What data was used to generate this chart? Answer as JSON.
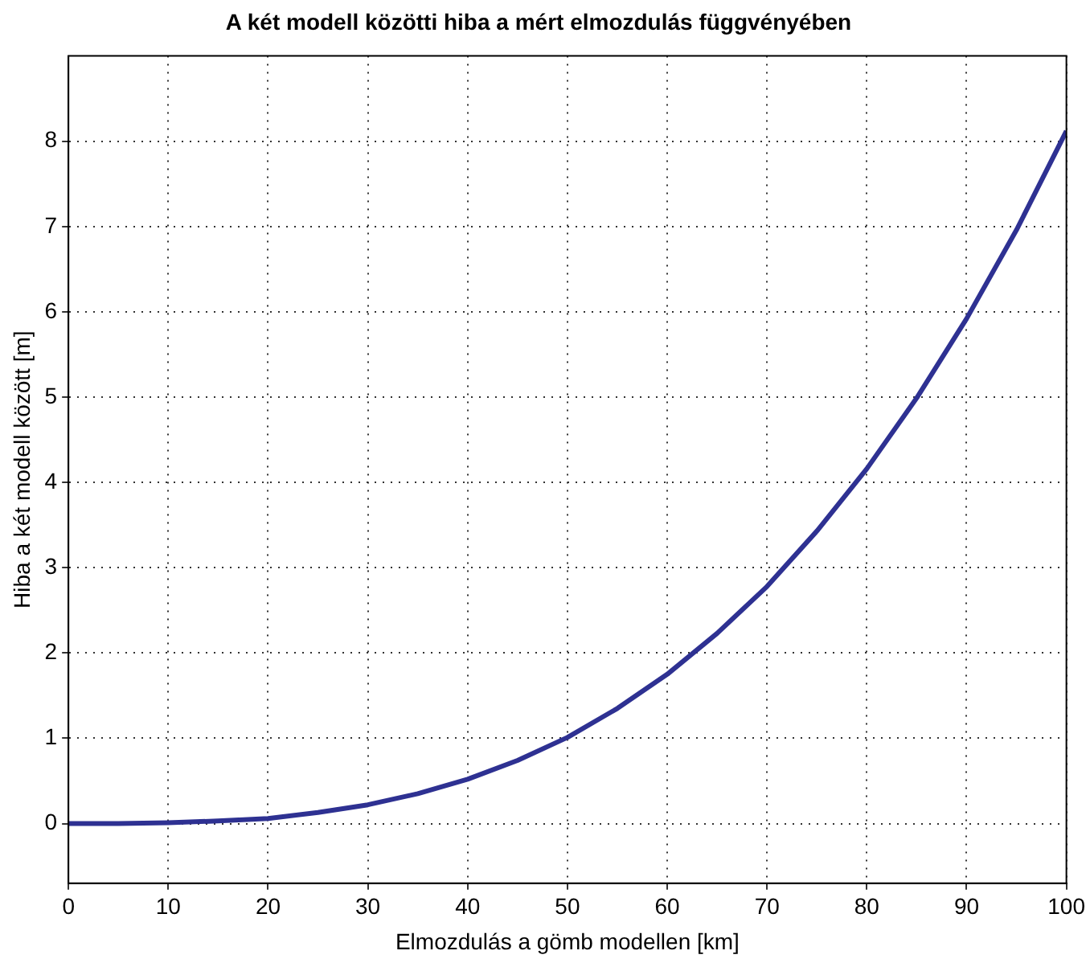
{
  "chart_data": {
    "type": "line",
    "title": "A két modell közötti hiba a mért elmozdulás függvényében",
    "xlabel": "Elmozdulás a gömb modellen [km]",
    "ylabel": "Hiba a két modell között [m]",
    "x": [
      0,
      5,
      10,
      15,
      20,
      25,
      30,
      35,
      40,
      45,
      50,
      55,
      60,
      65,
      70,
      75,
      80,
      85,
      90,
      95,
      100
    ],
    "series": [
      {
        "color": "#2e3192",
        "values": [
          0,
          0,
          0.01,
          0.03,
          0.06,
          0.13,
          0.22,
          0.35,
          0.52,
          0.74,
          1.01,
          1.35,
          1.75,
          2.23,
          2.78,
          3.43,
          4.16,
          4.99,
          5.92,
          6.96,
          8.12
        ]
      }
    ],
    "xlim": [
      0,
      100
    ],
    "ylim": [
      -0.7,
      9
    ],
    "xticks": [
      0,
      10,
      20,
      30,
      40,
      50,
      60,
      70,
      80,
      90,
      100
    ],
    "yticks": [
      0,
      1,
      2,
      3,
      4,
      5,
      6,
      7,
      8
    ],
    "grid": true
  }
}
